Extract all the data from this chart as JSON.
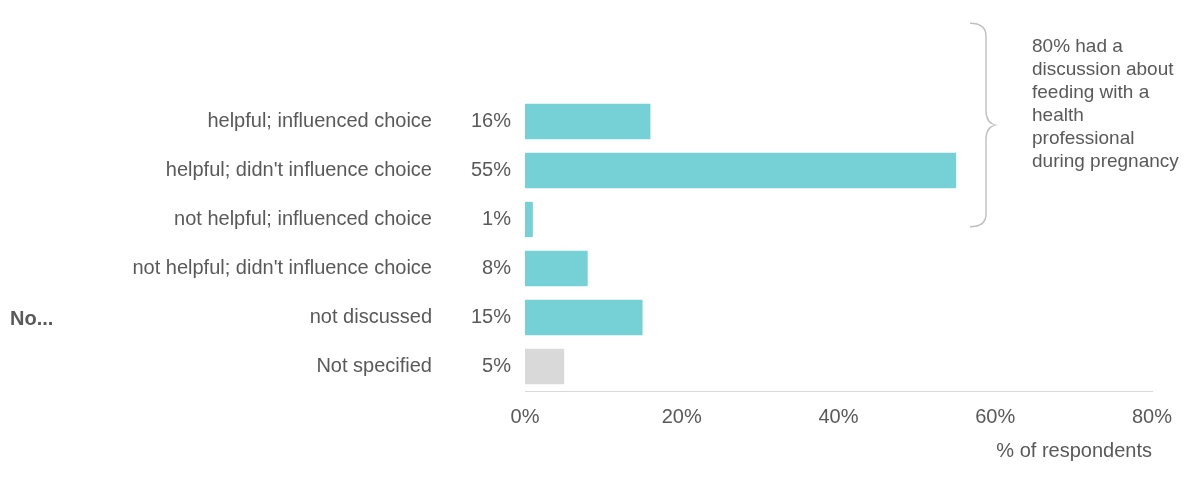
{
  "chart_data": {
    "type": "bar",
    "orientation": "horizontal",
    "categories": [
      "helpful; influenced choice",
      "helpful; didn't influence choice",
      "not helpful; influenced choice",
      "not helpful; didn't influence choice",
      "not discussed",
      "Not specified"
    ],
    "values": [
      16,
      55,
      1,
      8,
      15,
      5
    ],
    "colors": [
      "#76d1d6",
      "#76d1d6",
      "#76d1d6",
      "#76d1d6",
      "#76d1d6",
      "#d9d9d9"
    ],
    "value_labels": [
      "16%",
      "55%",
      "1%",
      "8%",
      "15%",
      "5%"
    ],
    "xlim": [
      0,
      80
    ],
    "xticks": [
      {
        "value": 0,
        "label": "0%"
      },
      {
        "value": 20,
        "label": "20%"
      },
      {
        "value": 40,
        "label": "40%"
      },
      {
        "value": 60,
        "label": "60%"
      },
      {
        "value": 80,
        "label": "80%"
      }
    ],
    "xlabel": "% of respondents",
    "grid": false,
    "legend": false,
    "annotations": [
      "80% had a discussion about feeding with a health professional during pregnancy",
      "No..."
    ]
  }
}
